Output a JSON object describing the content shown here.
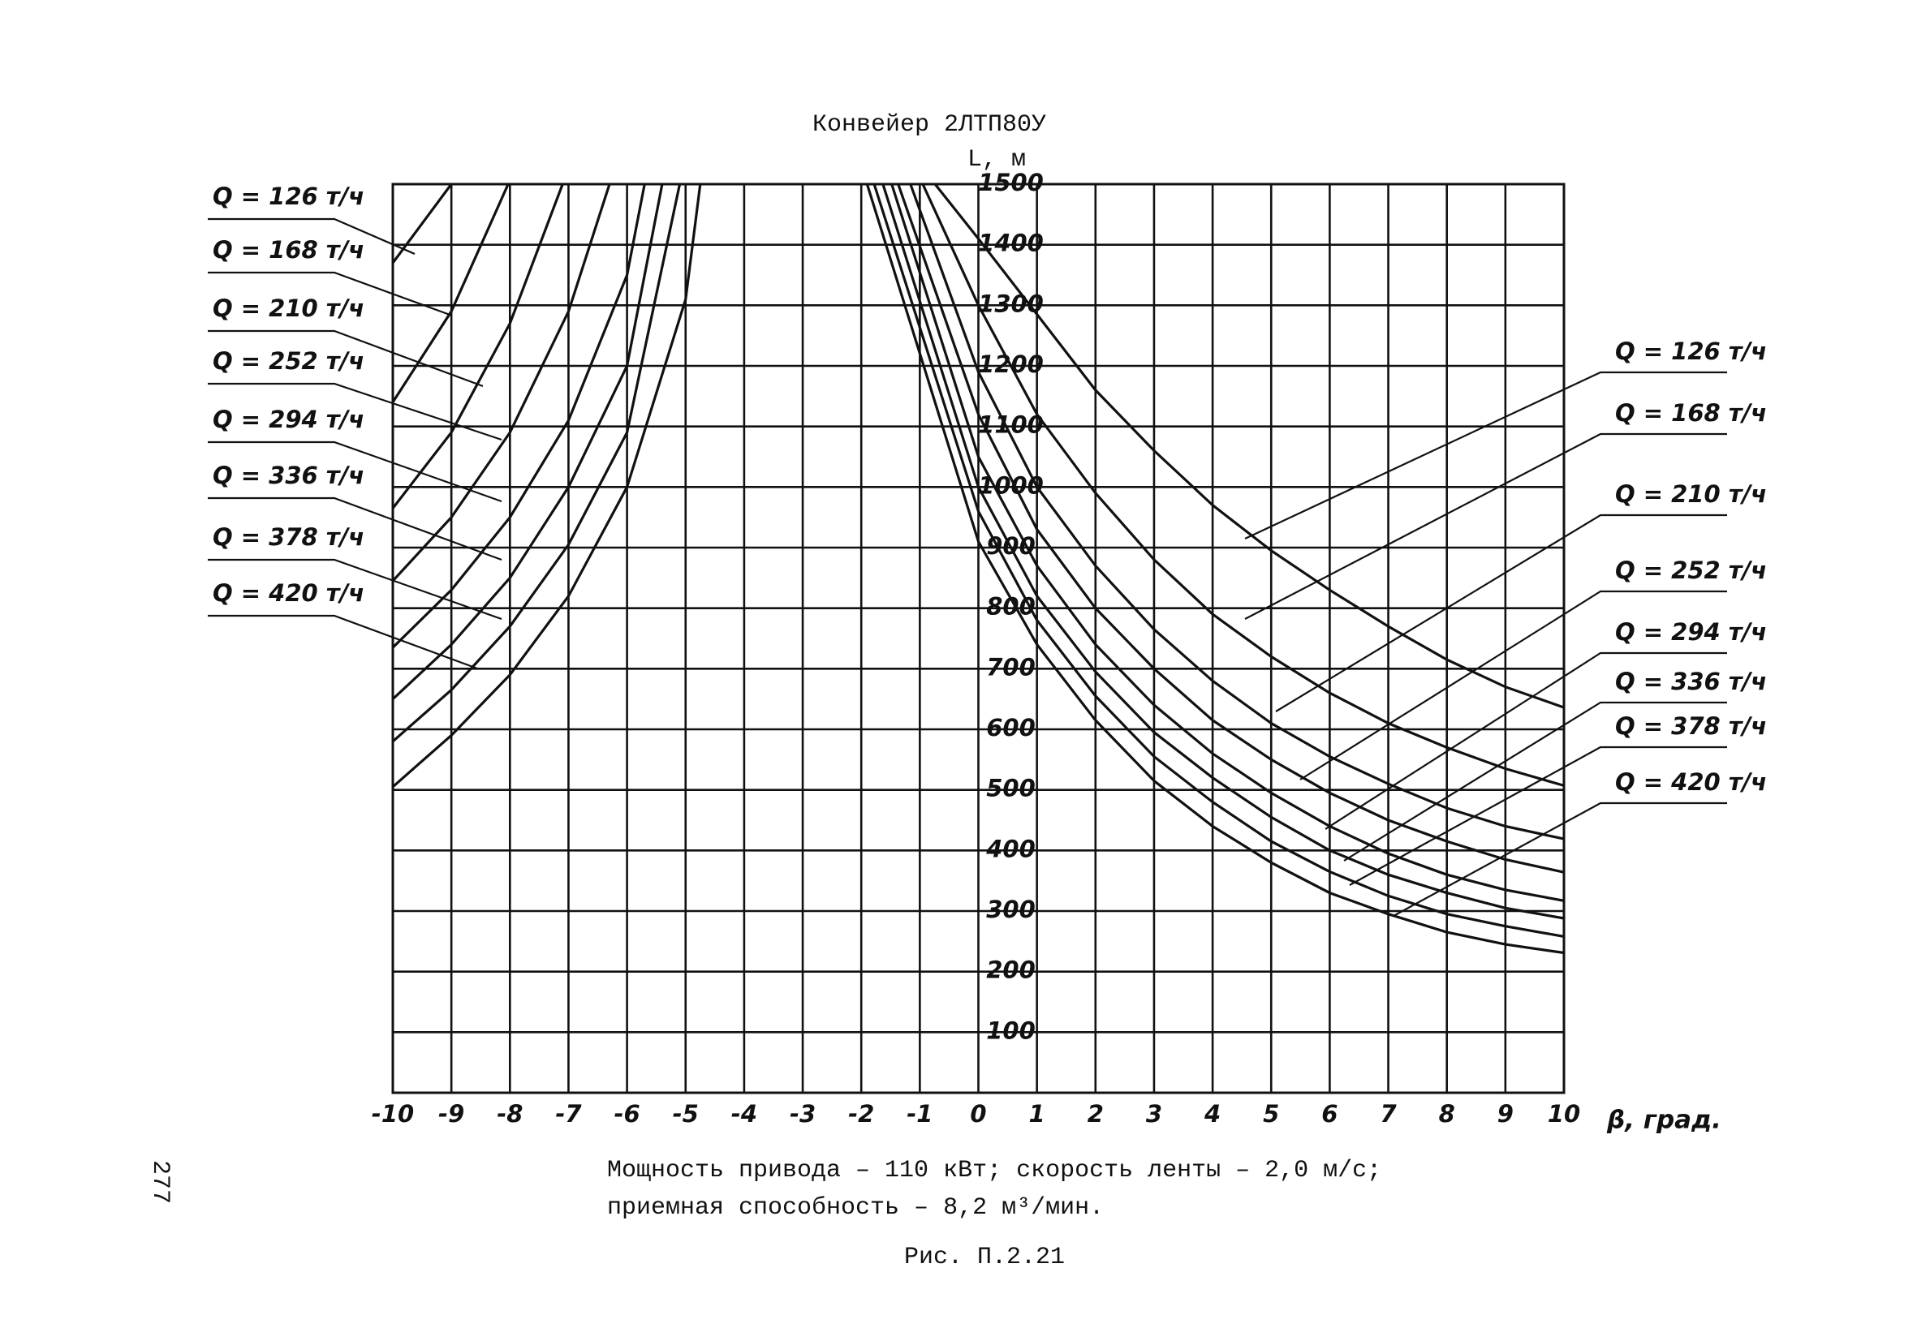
{
  "chart_data": {
    "type": "line",
    "title": "Конвейер 2ЛТП80У",
    "y_label": "L, м",
    "x_label": "β, град.",
    "notes": [
      "Мощность привода – 110 кВт; скорость ленты – 2,0 м/с;",
      "приемная способность – 8,2 м³/мин."
    ],
    "caption": "Рис. П.2.21",
    "page_number": "277",
    "xlim": [
      -10,
      10
    ],
    "xticks": [
      -10,
      -9,
      -8,
      -7,
      -6,
      -5,
      -4,
      -3,
      -2,
      -1,
      0,
      1,
      2,
      3,
      4,
      5,
      6,
      7,
      8,
      9,
      10
    ],
    "ylim": [
      0,
      1500
    ],
    "yticks": [
      100,
      200,
      300,
      400,
      500,
      600,
      700,
      800,
      900,
      1000,
      1100,
      1200,
      1300,
      1400,
      1500
    ],
    "grid": true,
    "series": [
      {
        "name": "Q = 126 т/ч",
        "color": "#111111",
        "x": [
          -10,
          -9.0,
          null,
          -0.74,
          0,
          1,
          2,
          3,
          4,
          5,
          6,
          7,
          8,
          9,
          10
        ],
        "values": [
          1370,
          1500,
          null,
          1500,
          1410,
          1285,
          1160,
          1060,
          970,
          895,
          830,
          770,
          715,
          670,
          636
        ]
      },
      {
        "name": "Q = 168 т/ч",
        "color": "#111111",
        "x": [
          -10,
          -9,
          -8.03,
          null,
          -0.95,
          0,
          1,
          2,
          3,
          4,
          5,
          6,
          7,
          8,
          9,
          10
        ],
        "values": [
          1140,
          1290,
          1500,
          null,
          1500,
          1300,
          1120,
          990,
          880,
          790,
          720,
          660,
          610,
          570,
          535,
          507
        ]
      },
      {
        "name": "Q = 210 т/ч",
        "color": "#111111",
        "x": [
          -10,
          -9,
          -8,
          -7.1,
          null,
          -1.16,
          0,
          1,
          2,
          3,
          4,
          5,
          6,
          7,
          8,
          9,
          10
        ],
        "values": [
          965,
          1090,
          1270,
          1500,
          null,
          1500,
          1190,
          1000,
          870,
          765,
          680,
          610,
          555,
          510,
          470,
          440,
          419
        ]
      },
      {
        "name": "Q = 252 т/ч",
        "color": "#111111",
        "x": [
          -10,
          -9,
          -8,
          -7,
          -6.3,
          null,
          -1.37,
          0,
          1,
          2,
          3,
          4,
          5,
          6,
          7,
          8,
          9,
          10
        ],
        "values": [
          845,
          950,
          1090,
          1290,
          1500,
          null,
          1500,
          1120,
          930,
          800,
          700,
          615,
          550,
          495,
          450,
          415,
          385,
          364
        ]
      },
      {
        "name": "Q = 294 т/ч",
        "color": "#111111",
        "x": [
          -10,
          -9,
          -8,
          -7,
          -6,
          -5.7,
          null,
          -1.48,
          0,
          1,
          2,
          3,
          4,
          5,
          6,
          7,
          8,
          9,
          10
        ],
        "values": [
          735,
          830,
          950,
          1110,
          1350,
          1500,
          null,
          1500,
          1050,
          870,
          740,
          640,
          560,
          495,
          440,
          395,
          360,
          335,
          317
        ]
      },
      {
        "name": "Q = 336 т/ч",
        "color": "#111111",
        "x": [
          -10,
          -9,
          -8,
          -7,
          -6,
          -5.4,
          null,
          -1.63,
          0,
          1,
          2,
          3,
          4,
          5,
          6,
          7,
          8,
          9,
          10
        ],
        "values": [
          650,
          740,
          850,
          1000,
          1200,
          1500,
          null,
          1500,
          1000,
          820,
          695,
          595,
          520,
          455,
          400,
          360,
          330,
          305,
          288
        ]
      },
      {
        "name": "Q = 378 т/ч",
        "color": "#111111",
        "x": [
          -10,
          -9,
          -8,
          -7,
          -6,
          -5.1,
          null,
          -1.78,
          0,
          1,
          2,
          3,
          4,
          5,
          6,
          7,
          8,
          9,
          10
        ],
        "values": [
          580,
          665,
          770,
          905,
          1090,
          1500,
          null,
          1500,
          960,
          780,
          655,
          555,
          480,
          415,
          365,
          325,
          295,
          275,
          258
        ]
      },
      {
        "name": "Q = 420 т/ч",
        "color": "#111111",
        "x": [
          -10,
          -9,
          -8,
          -7,
          -6,
          -5,
          -4.75,
          null,
          -1.9,
          0,
          1,
          2,
          3,
          4,
          5,
          6,
          7,
          8,
          9,
          10
        ],
        "values": [
          505,
          590,
          690,
          820,
          1000,
          1310,
          1500,
          null,
          1500,
          910,
          740,
          615,
          515,
          440,
          380,
          330,
          295,
          265,
          245,
          231
        ]
      }
    ]
  }
}
